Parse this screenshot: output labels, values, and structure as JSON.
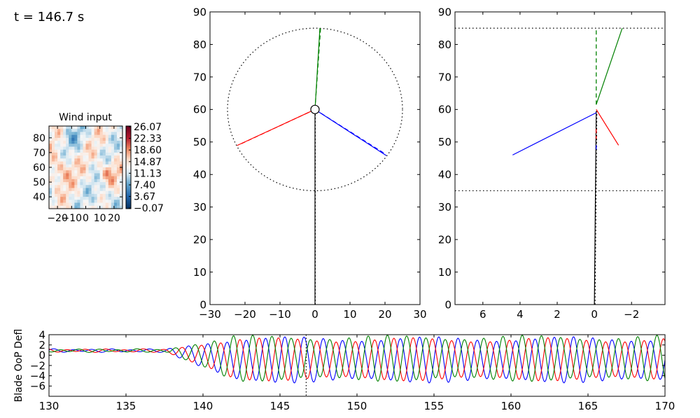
{
  "time_label": "t = 146.7 s",
  "chart_data": [
    {
      "id": "wind",
      "type": "heatmap",
      "title": "Wind input",
      "xticks": [
        -20,
        -10,
        0,
        10,
        20
      ],
      "yticks": [
        40,
        50,
        60,
        70,
        80
      ],
      "xlim": [
        -26,
        26
      ],
      "ylim": [
        32,
        88
      ],
      "colormap": "RdBu_r",
      "colorbar_range": [
        -0.07,
        26.07
      ],
      "colorbar_ticks": [
        "26.07",
        "22.33",
        "18.60",
        "14.87",
        "11.13",
        "7.40",
        "3.67",
        "−0.07"
      ]
    },
    {
      "id": "rotor_front",
      "type": "line",
      "xlim": [
        -30,
        30
      ],
      "ylim": [
        0,
        90
      ],
      "xticks": [
        -30,
        -20,
        -10,
        0,
        10,
        20,
        30
      ],
      "yticks": [
        0,
        10,
        20,
        30,
        40,
        50,
        60,
        70,
        80,
        90
      ],
      "hub": [
        0,
        60
      ],
      "rotor_radius": 25,
      "tower": [
        [
          0,
          0
        ],
        [
          0,
          60
        ]
      ],
      "series": [
        {
          "color": "#008000",
          "solid": [
            [
              0,
              60
            ],
            [
              1.4,
              85
            ]
          ],
          "dashed": [
            [
              0,
              60
            ],
            [
              1.6,
              85
            ]
          ]
        },
        {
          "color": "#ff0000",
          "solid": [
            [
              0,
              60
            ],
            [
              -22.3,
              48.9
            ]
          ],
          "dashed": [
            [
              0,
              60
            ],
            [
              -21.6,
              49.2
            ]
          ]
        },
        {
          "color": "#0000ff",
          "solid": [
            [
              0,
              60
            ],
            [
              20.4,
              45.8
            ]
          ],
          "dashed": [
            [
              0,
              60
            ],
            [
              19.8,
              46.5
            ]
          ]
        }
      ]
    },
    {
      "id": "rotor_side",
      "type": "line",
      "xlim": [
        7.5,
        -3.8
      ],
      "ylim": [
        0,
        90
      ],
      "xticks": [
        6,
        4,
        2,
        0,
        -2
      ],
      "yticks": [
        0,
        10,
        20,
        30,
        40,
        50,
        60,
        70,
        80,
        90
      ],
      "hlines": [
        85,
        35
      ],
      "tower": [
        [
          0,
          0
        ],
        [
          -0.1,
          59.5
        ]
      ],
      "series": [
        {
          "color": "#008000",
          "solid": [
            [
              -0.1,
              61.5
            ],
            [
              -1.5,
              85
            ]
          ],
          "dashed": [
            [
              -0.1,
              61.5
            ],
            [
              -0.1,
              85
            ]
          ]
        },
        {
          "color": "#ff0000",
          "solid": [
            [
              -0.1,
              60
            ],
            [
              -1.3,
              49
            ]
          ],
          "dashed": [
            [
              -0.1,
              54
            ],
            [
              -0.1,
              51
            ]
          ]
        },
        {
          "color": "#0000ff",
          "solid": [
            [
              -0.1,
              59
            ],
            [
              4.4,
              46
            ]
          ],
          "dashed": [
            [
              -0.1,
              49
            ],
            [
              -0.1,
              47
            ]
          ]
        }
      ]
    },
    {
      "id": "oop_deflection",
      "type": "line",
      "ylabel": "Blade OoP Defl",
      "xlim": [
        130,
        170
      ],
      "ylim": [
        -8,
        4
      ],
      "xticks": [
        130,
        135,
        140,
        145,
        150,
        155,
        160,
        165,
        170
      ],
      "yticks": [
        4,
        2,
        0,
        -2,
        -4,
        -6
      ],
      "current_time": 146.7,
      "series": [
        {
          "color": "#0000ff",
          "mean": -0.9,
          "amplitude": 4.5,
          "period": 1.25,
          "phase": 0.0,
          "ramp_start": 137.5,
          "ramp_end": 142
        },
        {
          "color": "#ff0000",
          "mean": -0.8,
          "amplitude": 4.2,
          "period": 1.25,
          "phase": 2.09,
          "ramp_start": 137.5,
          "ramp_end": 142
        },
        {
          "color": "#008000",
          "mean": -0.6,
          "amplitude": 4.5,
          "period": 1.25,
          "phase": 4.19,
          "ramp_start": 137.5,
          "ramp_end": 142
        }
      ]
    }
  ]
}
